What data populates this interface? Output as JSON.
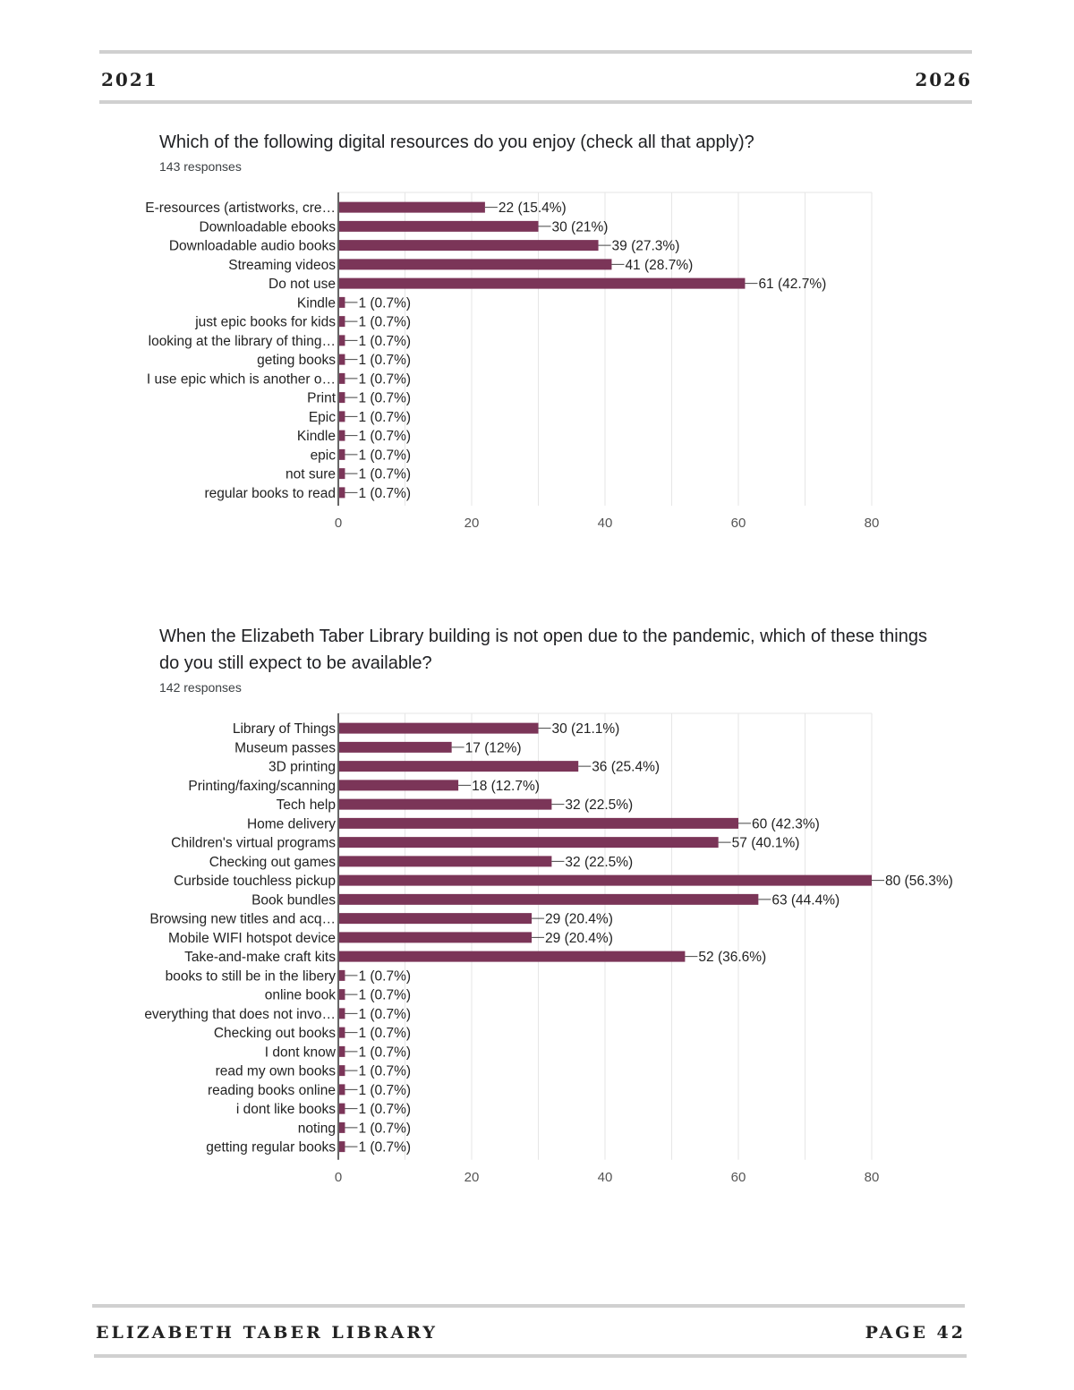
{
  "header": {
    "year_left": "2021",
    "year_right": "2026"
  },
  "footer": {
    "library_name": "ELIZABETH TABER LIBRARY",
    "page_label": "PAGE 42"
  },
  "questions": [
    {
      "title": "Which of the following digital resources do you enjoy (check all that apply)?",
      "responses": "143 responses"
    },
    {
      "title": "When the Elizabeth Taber Library building is not open due to the pandemic, which of these things do you still expect to be available?",
      "responses": "142 responses"
    }
  ],
  "colors": {
    "bar": "#7b3558",
    "grid": "#e6e6e6",
    "text": "#222222"
  },
  "chart_data": [
    {
      "type": "bar",
      "orientation": "horizontal",
      "categories": [
        "E-resources (artistworks, cre…",
        "Downloadable ebooks",
        "Downloadable audio books",
        "Streaming videos",
        "Do not use",
        "Kindle",
        "just epic books for kids",
        "looking at the library of thing…",
        "geting books",
        "I use epic which is another o…",
        "Print",
        "Epic",
        "Kindle",
        "epic",
        "not sure",
        "regular books to read"
      ],
      "values": [
        22,
        30,
        39,
        41,
        61,
        1,
        1,
        1,
        1,
        1,
        1,
        1,
        1,
        1,
        1,
        1
      ],
      "value_labels": [
        "22 (15.4%)",
        "30 (21%)",
        "39 (27.3%)",
        "41 (28.7%)",
        "61 (42.7%)",
        "1 (0.7%)",
        "1 (0.7%)",
        "1 (0.7%)",
        "1 (0.7%)",
        "1 (0.7%)",
        "1 (0.7%)",
        "1 (0.7%)",
        "1 (0.7%)",
        "1 (0.7%)",
        "1 (0.7%)",
        "1 (0.7%)"
      ],
      "xlim": [
        0,
        80
      ],
      "ticks": [
        "0",
        "20",
        "40",
        "60",
        "80"
      ],
      "grid": true
    },
    {
      "type": "bar",
      "orientation": "horizontal",
      "categories": [
        "Library of Things",
        "Museum passes",
        "3D printing",
        "Printing/faxing/scanning",
        "Tech help",
        "Home delivery",
        "Children's virtual programs",
        "Checking out games",
        "Curbside touchless pickup",
        "Book bundles",
        "Browsing new titles and acq…",
        "Mobile WIFI hotspot device",
        "Take-and-make craft kits",
        "books to still be in the libery",
        "online book",
        "everything that does not invo…",
        "Checking out books",
        "I dont know",
        "read my own books",
        "reading books online",
        "i dont like books",
        "noting",
        "getting regular books"
      ],
      "values": [
        30,
        17,
        36,
        18,
        32,
        60,
        57,
        32,
        80,
        63,
        29,
        29,
        52,
        1,
        1,
        1,
        1,
        1,
        1,
        1,
        1,
        1,
        1
      ],
      "value_labels": [
        "30 (21.1%)",
        "17 (12%)",
        "36 (25.4%)",
        "18 (12.7%)",
        "32 (22.5%)",
        "60 (42.3%)",
        "57 (40.1%)",
        "32 (22.5%)",
        "80 (56.3%)",
        "63 (44.4%)",
        "29 (20.4%)",
        "29 (20.4%)",
        "52 (36.6%)",
        "1 (0.7%)",
        "1 (0.7%)",
        "1 (0.7%)",
        "1 (0.7%)",
        "1 (0.7%)",
        "1 (0.7%)",
        "1 (0.7%)",
        "1 (0.7%)",
        "1 (0.7%)",
        "1 (0.7%)"
      ],
      "xlim": [
        0,
        80
      ],
      "ticks": [
        "0",
        "20",
        "40",
        "60",
        "80"
      ],
      "grid": true
    }
  ]
}
